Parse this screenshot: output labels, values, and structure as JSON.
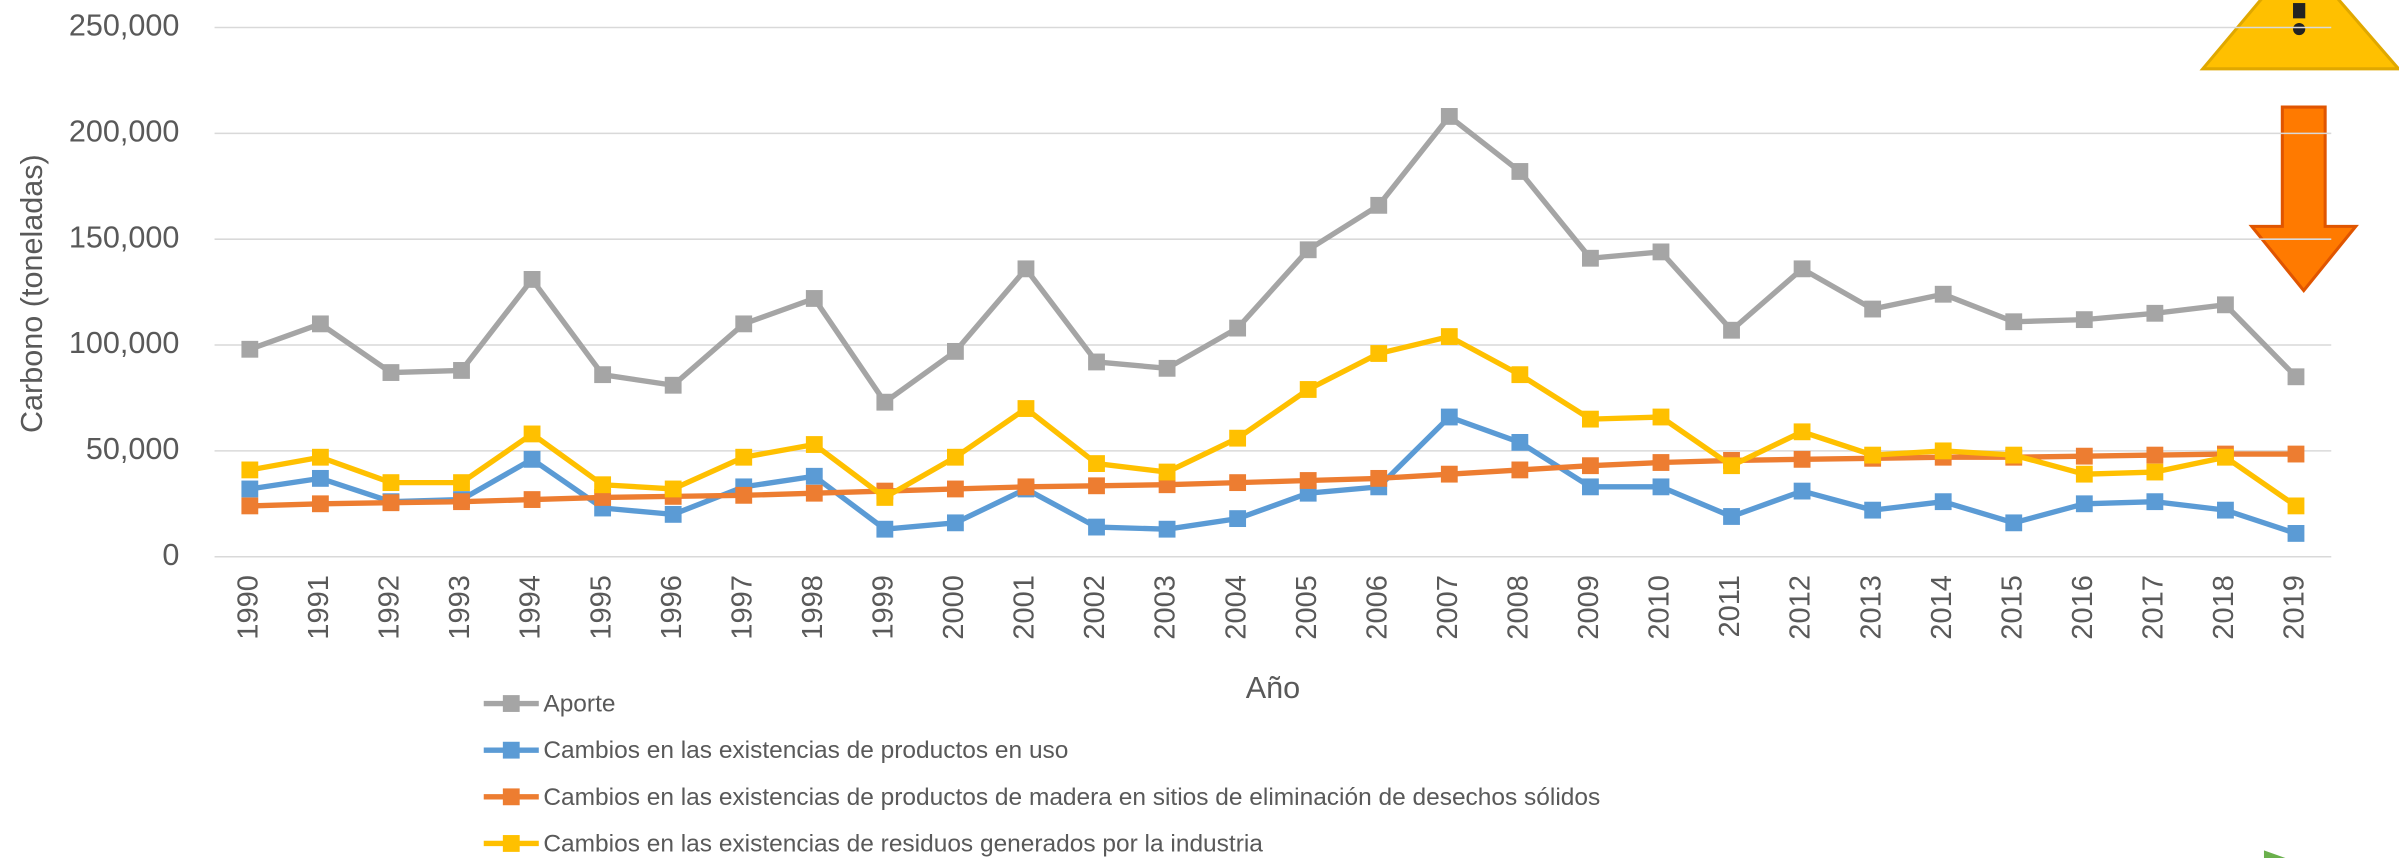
{
  "chart_data": {
    "type": "line",
    "x_label": "Año",
    "y_label": "Carbono (toneladas)",
    "categories": [
      "1990",
      "1991",
      "1992",
      "1993",
      "1994",
      "1995",
      "1996",
      "1997",
      "1998",
      "1999",
      "2000",
      "2001",
      "2002",
      "2003",
      "2004",
      "2005",
      "2006",
      "2007",
      "2008",
      "2009",
      "2010",
      "2011",
      "2012",
      "2013",
      "2014",
      "2015",
      "2016",
      "2017",
      "2018",
      "2019"
    ],
    "series": [
      {
        "name": "Aporte",
        "color": "#a5a5a5",
        "values": [
          98000,
          110000,
          87000,
          88000,
          131000,
          86000,
          81000,
          110000,
          122000,
          73000,
          97000,
          136000,
          92000,
          89000,
          108000,
          145000,
          166000,
          208000,
          182000,
          141000,
          144000,
          107000,
          136000,
          117000,
          124000,
          111000,
          112000,
          115000,
          119000,
          85000
        ]
      },
      {
        "name": "Cambios en las existencias de productos en uso",
        "color": "#5b9bd5",
        "values": [
          32000,
          37000,
          26000,
          27000,
          46000,
          23000,
          20000,
          33000,
          38000,
          13000,
          16000,
          32000,
          14000,
          13000,
          18000,
          30000,
          33000,
          66000,
          54000,
          33000,
          33000,
          19000,
          31000,
          22000,
          26000,
          16000,
          25000,
          26000,
          22000,
          11000
        ]
      },
      {
        "name": "Cambios en las existencias de productos de madera en sitios de eliminación de desechos sólidos",
        "color": "#ed7d31",
        "values": [
          24000,
          25000,
          25500,
          26000,
          27000,
          28000,
          28500,
          29000,
          30000,
          31000,
          32000,
          33000,
          33500,
          34000,
          35000,
          36000,
          37000,
          39000,
          41000,
          43000,
          44500,
          45500,
          46000,
          46500,
          47000,
          47000,
          47500,
          48000,
          48500,
          48500
        ]
      },
      {
        "name": "Cambios en las existencias de residuos generados por la industria",
        "color": "#ffc000",
        "values": [
          41000,
          47000,
          35000,
          35000,
          58000,
          34000,
          32000,
          47000,
          53000,
          28000,
          47000,
          70000,
          44000,
          40000,
          56000,
          79000,
          96000,
          104000,
          86000,
          65000,
          66000,
          43000,
          59000,
          48000,
          50000,
          48000,
          39000,
          40000,
          47000,
          24000
        ]
      }
    ],
    "ylim": [
      0,
      250000
    ],
    "yticks": [
      0,
      {
        "value": 50000,
        "label": "50,000"
      },
      {
        "value": 100000,
        "label": "100,000"
      },
      {
        "value": 150000,
        "label": "150,000"
      },
      {
        "value": 200000,
        "label": "200,000"
      },
      {
        "value": 250000,
        "label": "250,000"
      }
    ],
    "grid": true
  }
}
